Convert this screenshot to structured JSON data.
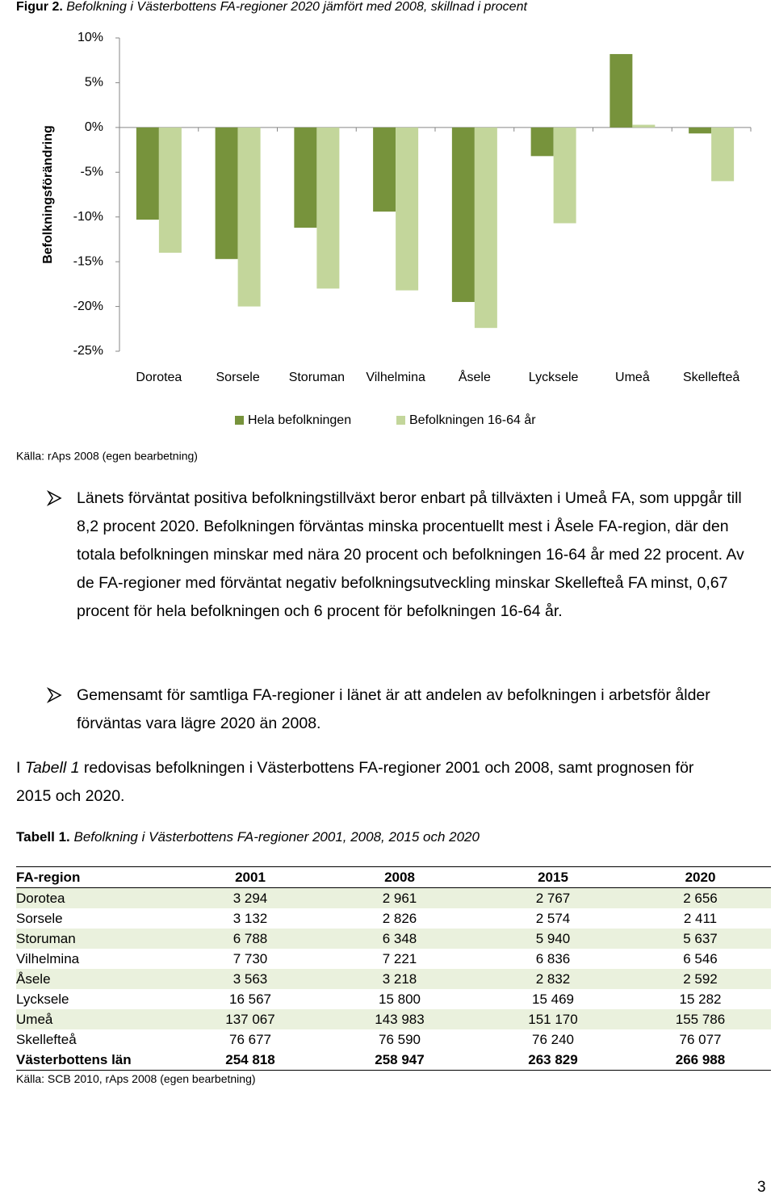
{
  "chart_data": {
    "type": "bar",
    "figure_label": "Figur 2.",
    "title": "Befolkning i Västerbottens FA-regioner 2020 jämfört med 2008, skillnad i procent",
    "y_label": "Befolkningsförändring",
    "categories": [
      "Dorotea",
      "Sorsele",
      "Storuman",
      "Vilhelmina",
      "Åsele",
      "Lycksele",
      "Umeå",
      "Skellefteå"
    ],
    "series": [
      {
        "name": "Hela befolkningen",
        "color": "#77933c",
        "values": [
          -10.3,
          -14.7,
          -11.2,
          -9.4,
          -19.5,
          -3.2,
          8.2,
          -0.67
        ]
      },
      {
        "name": "Befolkningen 16-64 år",
        "color": "#c3d69b",
        "values": [
          -14.0,
          -20.0,
          -18.0,
          -18.2,
          -22.4,
          -10.7,
          0.3,
          -6.0
        ]
      }
    ],
    "ylim": [
      -25,
      10
    ],
    "yticks": [
      {
        "value": -25,
        "label": "-25%"
      },
      {
        "value": -20,
        "label": "-20%"
      },
      {
        "value": -15,
        "label": "-15%"
      },
      {
        "value": -10,
        "label": "-10%"
      },
      {
        "value": -5,
        "label": "-5%"
      },
      {
        "value": 0,
        "label": "0%"
      },
      {
        "value": 5,
        "label": "5%"
      },
      {
        "value": 10,
        "label": "10%"
      }
    ],
    "grid": false,
    "legend": "bottom",
    "source": "Källa: rAps 2008 (egen bearbetning)"
  },
  "bullets": [
    "Länets förväntat positiva befolkningstillväxt beror enbart på tillväxten i Umeå FA, som uppgår till 8,2 procent 2020. Befolkningen förväntas minska procentuellt mest i Åsele FA-region, där den totala befolkningen minskar med nära 20 procent och befolkningen 16-64 år med 22 procent. Av de FA-regioner med förväntat negativ befolkningsutveckling minskar Skellefteå FA minst, 0,67 procent för hela befolkningen och 6 procent för befolkningen 16-64 år.",
    "Gemensamt för samtliga FA-regioner i länet är att andelen av befolkningen i arbetsför ålder förväntas vara lägre 2020 än 2008."
  ],
  "paragraph": {
    "before": "I ",
    "italic": "Tabell 1",
    "after": " redovisas befolkningen i Västerbottens FA-regioner 2001 och 2008, samt prognosen för 2015 och 2020."
  },
  "table": {
    "label": "Tabell 1.",
    "caption": "Befolkning i Västerbottens FA-regioner 2001, 2008, 2015 och 2020",
    "header": [
      "FA-region",
      "2001",
      "2008",
      "2015",
      "2020"
    ],
    "rows": [
      [
        "Dorotea",
        "3 294",
        "2 961",
        "2 767",
        "2 656"
      ],
      [
        "Sorsele",
        "3 132",
        "2 826",
        "2 574",
        "2 411"
      ],
      [
        "Storuman",
        "6 788",
        "6 348",
        "5 940",
        "5 637"
      ],
      [
        "Vilhelmina",
        "7 730",
        "7 221",
        "6 836",
        "6 546"
      ],
      [
        "Åsele",
        "3 563",
        "3 218",
        "2 832",
        "2 592"
      ],
      [
        "Lycksele",
        "16 567",
        "15 800",
        "15 469",
        "15 282"
      ],
      [
        "Umeå",
        "137 067",
        "143 983",
        "151 170",
        "155 786"
      ],
      [
        "Skellefteå",
        "76 677",
        "76 590",
        "76 240",
        "76 077"
      ],
      [
        "Västerbottens län",
        "254 818",
        "258 947",
        "263 829",
        "266 988"
      ]
    ],
    "source": "Källa: SCB 2010, rAps 2008 (egen bearbetning)"
  },
  "page_number": "3"
}
